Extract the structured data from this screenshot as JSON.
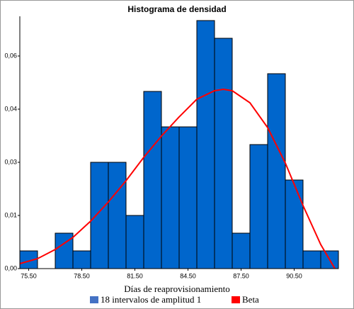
{
  "chart_data": {
    "type": "histogram",
    "title": "Histograma de densidad",
    "x_label": "Días de reaprovisionamiento",
    "name": "18 intervalos de amplitud 1",
    "color": "#0066cc",
    "bins": [
      75,
      76,
      77,
      78,
      79,
      80,
      81,
      82,
      83,
      84,
      85,
      86,
      87,
      88,
      89,
      90,
      91,
      92,
      93
    ],
    "values": [
      0.005,
      0,
      0.01,
      0.005,
      0.03,
      0.03,
      0.015,
      0.05,
      0.04,
      0.04,
      0.07,
      0.065,
      0.01,
      0.035,
      0.055,
      0.025,
      0.005,
      0.005
    ],
    "curve": {
      "name": "Beta",
      "color": "#ff0000",
      "x": [
        75,
        76,
        77,
        78,
        79,
        80,
        81,
        82,
        83,
        84,
        85,
        86,
        86.5,
        87,
        88,
        89,
        90,
        91,
        92,
        92.8
      ],
      "values": [
        0.0014,
        0.0028,
        0.0054,
        0.0088,
        0.0134,
        0.0188,
        0.0248,
        0.0314,
        0.0374,
        0.0428,
        0.0478,
        0.0502,
        0.0506,
        0.0502,
        0.0468,
        0.0398,
        0.0298,
        0.0178,
        0.0068,
        0
      ]
    },
    "xlim": [
      75,
      93
    ],
    "xticks": [
      {
        "value": 75.5,
        "label": "75.50"
      },
      {
        "value": 78.5,
        "label": "78.50"
      },
      {
        "value": 81.5,
        "label": "81.50"
      },
      {
        "value": 84.5,
        "label": "84.50"
      },
      {
        "value": 87.5,
        "label": "87.50"
      },
      {
        "value": 90.5,
        "label": "90.50"
      }
    ],
    "ylim": [
      0,
      0.0702
    ],
    "yticks": [
      {
        "value": 0,
        "label": "0,00"
      },
      {
        "value": 0.015,
        "label": "0,01"
      },
      {
        "value": 0.03,
        "label": "0,03"
      },
      {
        "value": 0.045,
        "label": "0,04"
      },
      {
        "value": 0.06,
        "label": "0,06"
      }
    ]
  }
}
